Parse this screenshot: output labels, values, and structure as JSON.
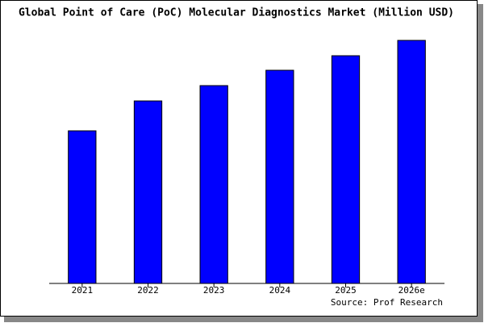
{
  "chart_data": {
    "type": "bar",
    "title": "Global Point of Care (PoC) Molecular Diagnostics Market (Million USD)",
    "categories": [
      "2021",
      "2022",
      "2023",
      "2024",
      "2025",
      "2026e"
    ],
    "values": [
      189,
      226,
      245,
      264,
      282,
      301
    ],
    "color": "#0000ff",
    "ylim": [
      0,
      301
    ],
    "source": "Source: Prof Research"
  }
}
